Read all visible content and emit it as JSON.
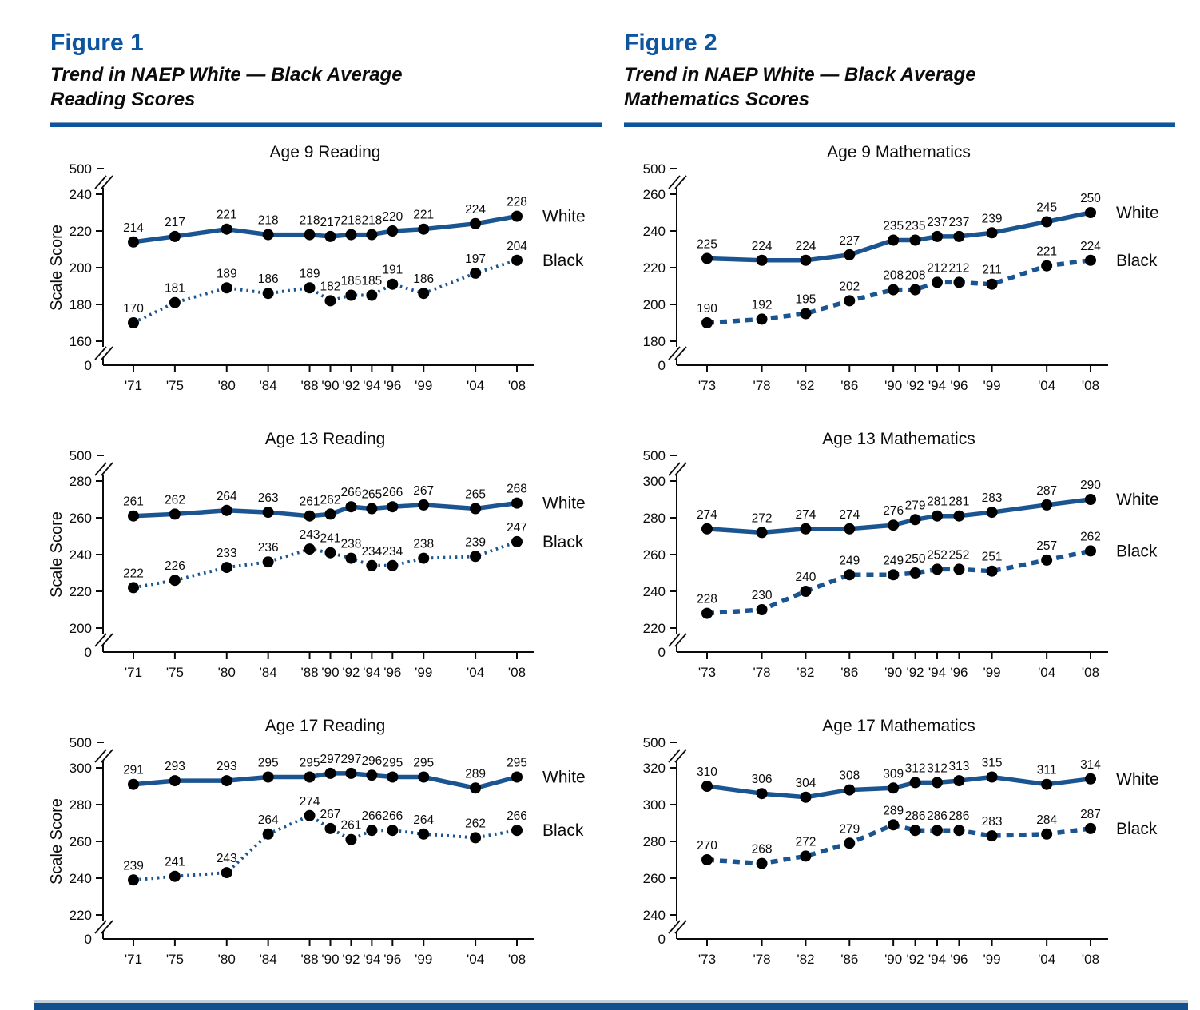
{
  "page": {
    "accent_color": "#0E55A0",
    "line_color": "#1A5491",
    "marker_color": "#000000",
    "text_color": "#0b0b0b",
    "bottom_bar_color": "#134F8C"
  },
  "figures": [
    {
      "label": "Figure 1",
      "title_line1": "Trend in NAEP White — Black Average",
      "title_line2": "Reading Scores"
    },
    {
      "label": "Figure 2",
      "title_line1": "Trend in NAEP White — Black Average",
      "title_line2": "Mathematics Scores"
    }
  ],
  "chart_data": [
    {
      "type": "line",
      "title": "Age 9 Reading",
      "ylabel": "Scale Score",
      "x_tick_labels": [
        "'71",
        "'75",
        "'80",
        "'84",
        "'88",
        "'90",
        "'92",
        "'94",
        "'96",
        "'99",
        "'04",
        "'08"
      ],
      "x_years": [
        1971,
        1975,
        1980,
        1984,
        1988,
        1990,
        1992,
        1994,
        1996,
        1999,
        2004,
        2008
      ],
      "y_ticks": [
        160,
        180,
        200,
        220,
        240
      ],
      "y_top_label": "500",
      "y_bottom_label": "0",
      "axis_break": true,
      "legend_position": "right",
      "series": [
        {
          "name": "White",
          "line_style": "solid",
          "values": [
            214,
            217,
            221,
            218,
            218,
            217,
            218,
            218,
            220,
            221,
            224,
            228
          ]
        },
        {
          "name": "Black",
          "line_style": "dotted",
          "values": [
            170,
            181,
            189,
            186,
            189,
            182,
            185,
            185,
            191,
            186,
            197,
            204
          ]
        }
      ]
    },
    {
      "type": "line",
      "title": "Age 13 Reading",
      "ylabel": "Scale Score",
      "x_tick_labels": [
        "'71",
        "'75",
        "'80",
        "'84",
        "'88",
        "'90",
        "'92",
        "'94",
        "'96",
        "'99",
        "'04",
        "'08"
      ],
      "x_years": [
        1971,
        1975,
        1980,
        1984,
        1988,
        1990,
        1992,
        1994,
        1996,
        1999,
        2004,
        2008
      ],
      "y_ticks": [
        200,
        220,
        240,
        260,
        280
      ],
      "y_top_label": "500",
      "y_bottom_label": "0",
      "axis_break": true,
      "legend_position": "right",
      "series": [
        {
          "name": "White",
          "line_style": "solid",
          "values": [
            261,
            262,
            264,
            263,
            261,
            262,
            266,
            265,
            266,
            267,
            265,
            268
          ]
        },
        {
          "name": "Black",
          "line_style": "dotted",
          "values": [
            222,
            226,
            233,
            236,
            243,
            241,
            238,
            234,
            234,
            238,
            239,
            247
          ]
        }
      ]
    },
    {
      "type": "line",
      "title": "Age 17 Reading",
      "ylabel": "Scale Score",
      "x_tick_labels": [
        "'71",
        "'75",
        "'80",
        "'84",
        "'88",
        "'90",
        "'92",
        "'94",
        "'96",
        "'99",
        "'04",
        "'08"
      ],
      "x_years": [
        1971,
        1975,
        1980,
        1984,
        1988,
        1990,
        1992,
        1994,
        1996,
        1999,
        2004,
        2008
      ],
      "y_ticks": [
        220,
        240,
        260,
        280,
        300
      ],
      "y_top_label": "500",
      "y_bottom_label": "0",
      "axis_break": true,
      "legend_position": "right",
      "series": [
        {
          "name": "White",
          "line_style": "solid",
          "values": [
            291,
            293,
            293,
            295,
            295,
            297,
            297,
            296,
            295,
            295,
            289,
            295
          ]
        },
        {
          "name": "Black",
          "line_style": "dotted",
          "values": [
            239,
            241,
            243,
            264,
            274,
            267,
            261,
            266,
            266,
            264,
            262,
            266
          ]
        }
      ]
    },
    {
      "type": "line",
      "title": "Age 9 Mathematics",
      "ylabel": "",
      "x_tick_labels": [
        "'73",
        "'78",
        "'82",
        "'86",
        "'90",
        "'92",
        "'94",
        "'96",
        "'99",
        "'04",
        "'08"
      ],
      "x_years": [
        1973,
        1978,
        1982,
        1986,
        1990,
        1992,
        1994,
        1996,
        1999,
        2004,
        2008
      ],
      "y_ticks": [
        180,
        200,
        220,
        240,
        260
      ],
      "y_top_label": "500",
      "y_bottom_label": "0",
      "axis_break": true,
      "legend_position": "right",
      "series": [
        {
          "name": "White",
          "line_style": "solid",
          "values": [
            225,
            224,
            224,
            227,
            235,
            235,
            237,
            237,
            239,
            245,
            250
          ]
        },
        {
          "name": "Black",
          "line_style": "dashed",
          "values": [
            190,
            192,
            195,
            202,
            208,
            208,
            212,
            212,
            211,
            221,
            224
          ]
        }
      ]
    },
    {
      "type": "line",
      "title": "Age 13 Mathematics",
      "ylabel": "",
      "x_tick_labels": [
        "'73",
        "'78",
        "'82",
        "'86",
        "'90",
        "'92",
        "'94",
        "'96",
        "'99",
        "'04",
        "'08"
      ],
      "x_years": [
        1973,
        1978,
        1982,
        1986,
        1990,
        1992,
        1994,
        1996,
        1999,
        2004,
        2008
      ],
      "y_ticks": [
        220,
        240,
        260,
        280,
        300
      ],
      "y_top_label": "500",
      "y_bottom_label": "0",
      "axis_break": true,
      "legend_position": "right",
      "series": [
        {
          "name": "White",
          "line_style": "solid",
          "values": [
            274,
            272,
            274,
            274,
            276,
            279,
            281,
            281,
            283,
            287,
            290
          ]
        },
        {
          "name": "Black",
          "line_style": "dashed",
          "values": [
            228,
            230,
            240,
            249,
            249,
            250,
            252,
            252,
            251,
            257,
            262
          ]
        }
      ]
    },
    {
      "type": "line",
      "title": "Age 17 Mathematics",
      "ylabel": "",
      "x_tick_labels": [
        "'73",
        "'78",
        "'82",
        "'86",
        "'90",
        "'92",
        "'94",
        "'96",
        "'99",
        "'04",
        "'08"
      ],
      "x_years": [
        1973,
        1978,
        1982,
        1986,
        1990,
        1992,
        1994,
        1996,
        1999,
        2004,
        2008
      ],
      "y_ticks": [
        240,
        260,
        280,
        300,
        320
      ],
      "y_top_label": "500",
      "y_bottom_label": "0",
      "axis_break": true,
      "legend_position": "right",
      "series": [
        {
          "name": "White",
          "line_style": "solid",
          "values": [
            310,
            306,
            304,
            308,
            309,
            312,
            312,
            313,
            315,
            311,
            314
          ]
        },
        {
          "name": "Black",
          "line_style": "dashed",
          "values": [
            270,
            268,
            272,
            279,
            289,
            286,
            286,
            286,
            283,
            284,
            287
          ]
        }
      ]
    }
  ]
}
